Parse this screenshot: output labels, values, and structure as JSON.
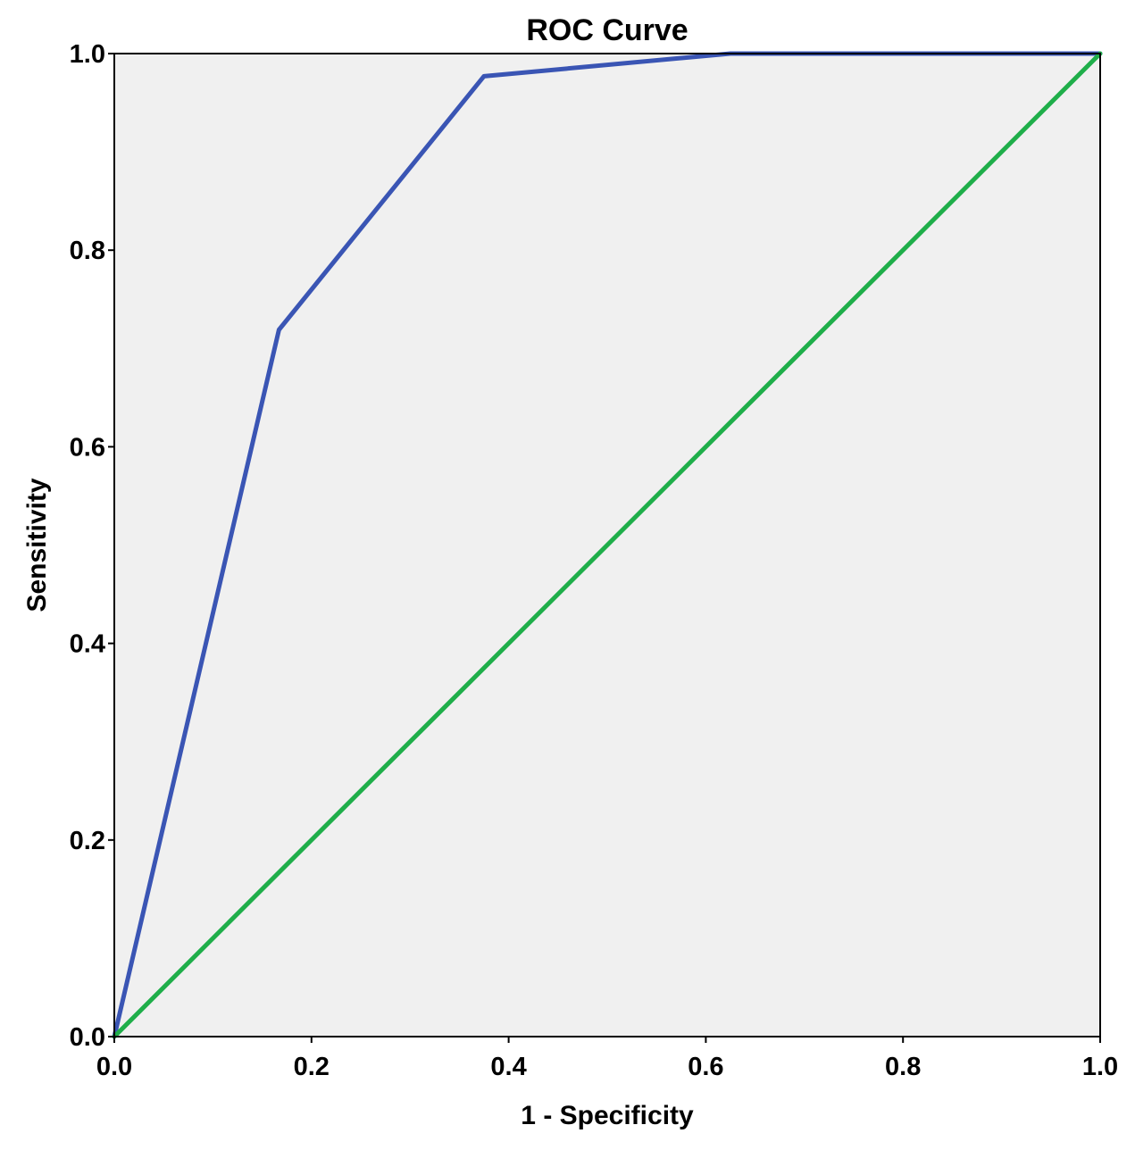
{
  "chart_data": {
    "type": "line",
    "title": "ROC Curve",
    "xlabel": "1 - Specificity",
    "ylabel": "Sensitivity",
    "xlim": [
      0.0,
      1.0
    ],
    "ylim": [
      0.0,
      1.0
    ],
    "x_ticks": [
      "0.0",
      "0.2",
      "0.4",
      "0.6",
      "0.8",
      "1.0"
    ],
    "y_ticks": [
      "0.0",
      "0.2",
      "0.4",
      "0.6",
      "0.8",
      "1.0"
    ],
    "grid": false,
    "background_color": "#f0f0f0",
    "series": [
      {
        "color": "#3a55b4",
        "points": [
          {
            "x": 0.0,
            "y": 0.0
          },
          {
            "x": 0.167,
            "y": 0.719
          },
          {
            "x": 0.375,
            "y": 0.977
          },
          {
            "x": 0.625,
            "y": 1.0
          },
          {
            "x": 1.0,
            "y": 1.0
          }
        ]
      },
      {
        "color": "#1fae4a",
        "points": [
          {
            "x": 0.0,
            "y": 0.0
          },
          {
            "x": 1.0,
            "y": 1.0
          }
        ]
      }
    ]
  }
}
